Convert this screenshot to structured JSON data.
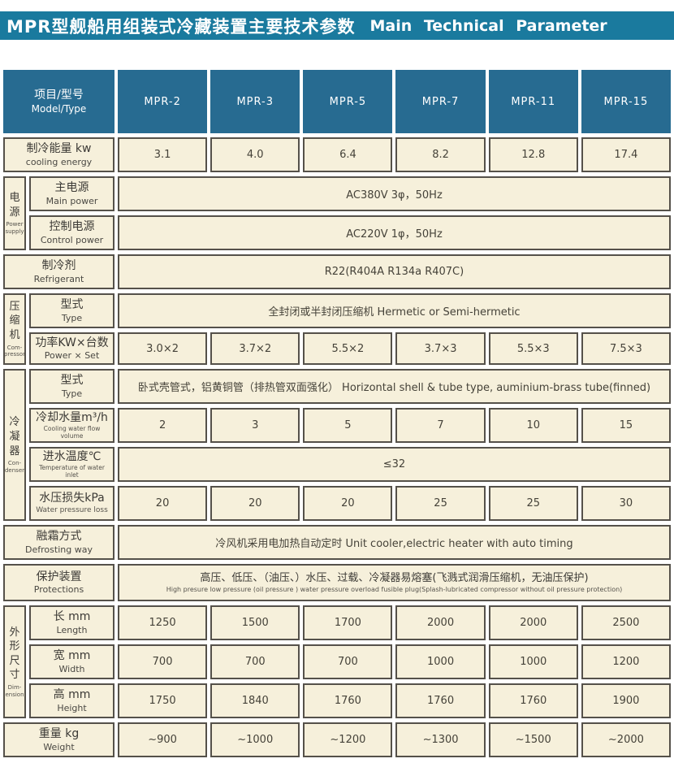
{
  "colors": {
    "title_bar": "#1a7a9e",
    "header_cell": "#276b91",
    "cell_background": "#f6f0db"
  },
  "title": {
    "zh": "MPR型舰船用组装式冷藏装置主要技术参数",
    "en": "Main Technical Parameter"
  },
  "header": {
    "model_label_zh": "项目/型号",
    "model_label_en": "Model/Type",
    "models": [
      "MPR-2",
      "MPR-3",
      "MPR-5",
      "MPR-7",
      "MPR-11",
      "MPR-15"
    ]
  },
  "groups": {
    "power": {
      "zh": "电源",
      "en": "Power\nsupply"
    },
    "compressor": {
      "zh": "压缩机",
      "en": "Com-\npressor"
    },
    "condenser": {
      "zh": "冷凝器",
      "en": "Con-\ndenser"
    },
    "dimension": {
      "zh": "外形尺寸",
      "en": "Dim-\nension"
    }
  },
  "rows": {
    "cooling_energy": {
      "zh": "制冷能量 kw",
      "en": "cooling energy",
      "values": [
        "3.1",
        "4.0",
        "6.4",
        "8.2",
        "12.8",
        "17.4"
      ]
    },
    "main_power": {
      "zh": "主电源",
      "en": "Main power",
      "value": "AC380V 3φ，50Hz"
    },
    "control_power": {
      "zh": "控制电源",
      "en": "Control power",
      "value": "AC220V 1φ，50Hz"
    },
    "refrigerant": {
      "zh": "制冷剂",
      "en": "Refrigerant",
      "value": "R22(R404A R134a R407C)"
    },
    "compressor_type": {
      "zh": "型式",
      "en": "Type",
      "value": "全封闭或半封闭压缩机  Hermetic or Semi-hermetic"
    },
    "power_set": {
      "zh": "功率KW×台数",
      "en": "Power × Set",
      "values": [
        "3.0×2",
        "3.7×2",
        "5.5×2",
        "3.7×3",
        "5.5×3",
        "7.5×3"
      ]
    },
    "condenser_type": {
      "zh": "型式",
      "en": "Type",
      "value": "卧式壳管式，铝黄铜管（排热管双面强化）  Horizontal shell & tube type, auminium-brass tube(finned)"
    },
    "cooling_water": {
      "zh": "冷却水量m³/h",
      "en": "Cooling water flow volume",
      "values": [
        "2",
        "3",
        "5",
        "7",
        "10",
        "15"
      ]
    },
    "inlet_temp": {
      "zh": "进水温度℃",
      "en": "Temperature of water inlet",
      "value": "≤32"
    },
    "pressure_loss": {
      "zh": "水压损失kPa",
      "en": "Water pressure loss",
      "values": [
        "20",
        "20",
        "20",
        "25",
        "25",
        "30"
      ]
    },
    "defrost": {
      "zh": "融霜方式",
      "en": "Defrosting way",
      "value": "冷风机采用电加热自动定时 Unit cooler,electric heater with auto timing"
    },
    "protections": {
      "zh": "保护装置",
      "en": "Protections",
      "value_zh": "高压、低压、（油压、）水压、过载、冷凝器易熔塞(飞溅式润滑压缩机，无油压保护)",
      "value_en": "High presure  low pressure  (oil pressure )  water pressure  overload  fusible plug(Splash-lubricated compressor without oil pressure protection)"
    },
    "length": {
      "zh": "长 mm",
      "en": "Length",
      "values": [
        "1250",
        "1500",
        "1700",
        "2000",
        "2000",
        "2500"
      ]
    },
    "width": {
      "zh": "宽 mm",
      "en": "Width",
      "values": [
        "700",
        "700",
        "700",
        "1000",
        "1000",
        "1200"
      ]
    },
    "height": {
      "zh": "高 mm",
      "en": "Height",
      "values": [
        "1750",
        "1840",
        "1760",
        "1760",
        "1760",
        "1900"
      ]
    },
    "weight": {
      "zh": "重量 kg",
      "en": "Weight",
      "values": [
        "~900",
        "~1000",
        "~1200",
        "~1300",
        "~1500",
        "~2000"
      ]
    }
  }
}
